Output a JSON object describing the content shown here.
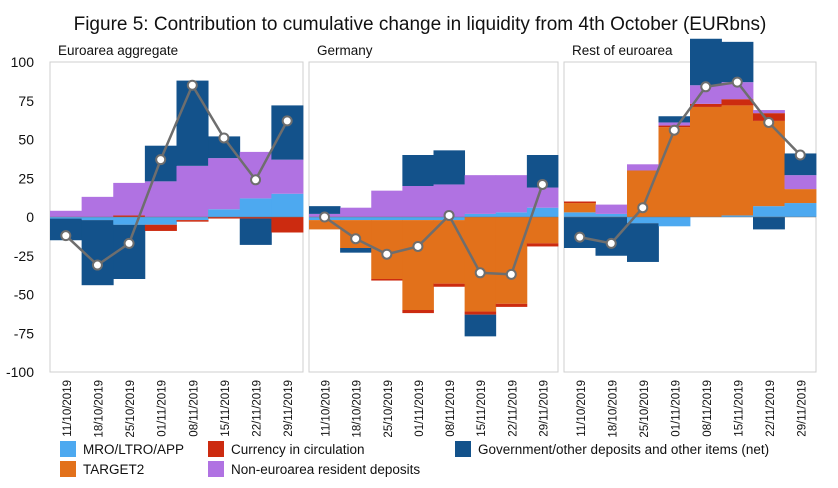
{
  "chart_data": {
    "type": "bar",
    "title": "Figure 5: Contribution to cumulative change in liquidity from 4th October (EURbns)",
    "ylim": [
      -100,
      100
    ],
    "yticks": [
      100,
      75,
      50,
      25,
      0,
      -25,
      -50,
      -75,
      -100
    ],
    "categories": [
      "11/10/2019",
      "18/10/2019",
      "25/10/2019",
      "01/11/2019",
      "08/11/2019",
      "15/11/2019",
      "22/11/2019",
      "29/11/2019"
    ],
    "legend": [
      {
        "key": "mro",
        "name": "MRO/LTRO/APP",
        "color": "#4da9f0"
      },
      {
        "key": "target2",
        "name": "TARGET2",
        "color": "#e2711b"
      },
      {
        "key": "currency",
        "name": "Currency in circulation",
        "color": "#cc2b10"
      },
      {
        "key": "nonea",
        "name": "Non-euroarea resident deposits",
        "color": "#b072e2"
      },
      {
        "key": "gov",
        "name": "Government/other deposits and other items (net)",
        "color": "#13528b"
      }
    ],
    "panels": [
      {
        "name": "Euroarea aggregate",
        "series": {
          "mro": [
            -1,
            -2,
            -5,
            -5,
            -2,
            5,
            12,
            15
          ],
          "target2": [
            0,
            0,
            0,
            0,
            0,
            0,
            0,
            0
          ],
          "currency": [
            0,
            0,
            1,
            -4,
            -1,
            -1,
            -1,
            -10
          ],
          "nonea": [
            4,
            13,
            21,
            23,
            33,
            33,
            30,
            22
          ],
          "gov": [
            -14,
            -42,
            -35,
            23,
            55,
            14,
            -17,
            35
          ]
        },
        "line": [
          -12,
          -31,
          -17,
          37,
          85,
          51,
          24,
          62
        ]
      },
      {
        "name": "Germany",
        "series": {
          "mro": [
            -2,
            -2,
            -2,
            -2,
            -2,
            2,
            3,
            6
          ],
          "target2": [
            -6,
            -18,
            -38,
            -58,
            -41,
            -61,
            -56,
            -17
          ],
          "currency": [
            0,
            0,
            -1,
            -2,
            -2,
            -2,
            -2,
            -2
          ],
          "nonea": [
            2,
            6,
            17,
            20,
            21,
            25,
            24,
            13
          ],
          "gov": [
            5,
            -3,
            0,
            20,
            22,
            -14,
            0,
            21
          ]
        },
        "line": [
          0,
          -14,
          -24,
          -19,
          1,
          -36,
          -37,
          21
        ]
      },
      {
        "name": "Rest of euroarea",
        "series": {
          "mro": [
            3,
            2,
            -4,
            -6,
            0,
            1,
            7,
            9
          ],
          "target2": [
            6,
            0,
            30,
            58,
            71,
            71,
            55,
            9
          ],
          "currency": [
            1,
            0,
            0,
            1,
            2,
            4,
            5,
            0
          ],
          "nonea": [
            0,
            6,
            4,
            2,
            12,
            11,
            2,
            9
          ],
          "gov": [
            -20,
            -25,
            -25,
            4,
            30,
            26,
            -8,
            14
          ]
        },
        "line": [
          -13,
          -17,
          6,
          56,
          84,
          87,
          61,
          40
        ]
      }
    ]
  }
}
